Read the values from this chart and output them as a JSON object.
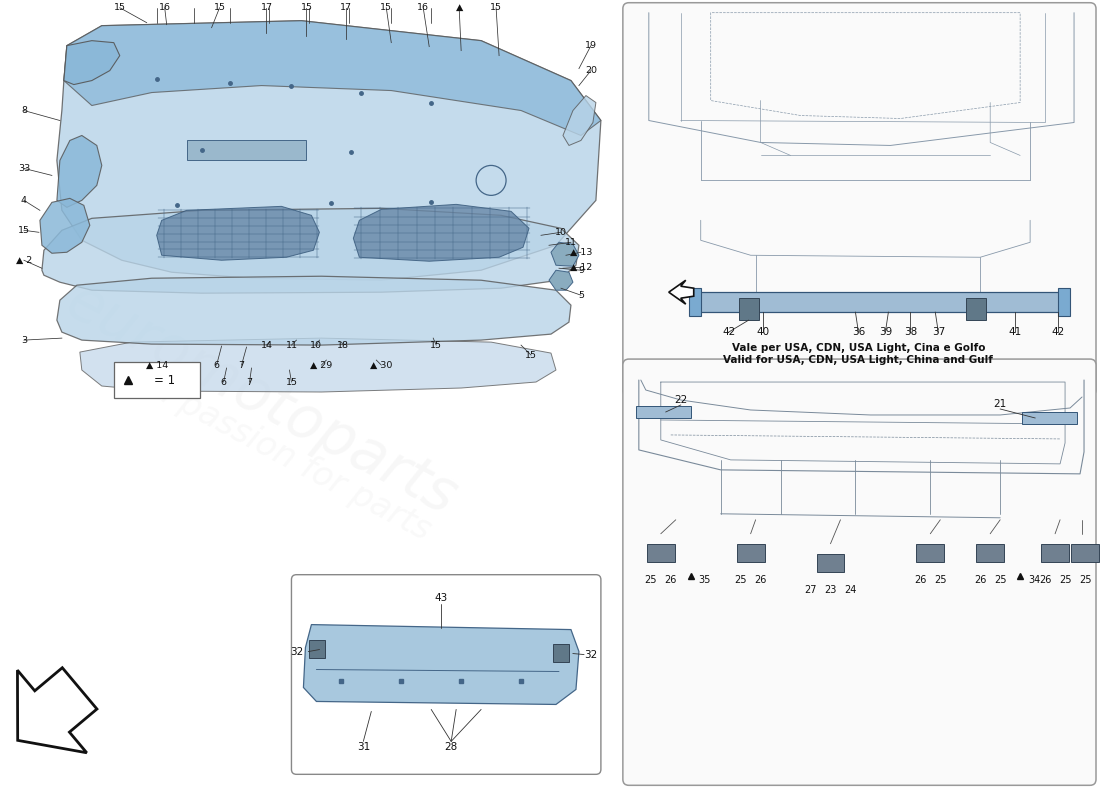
{
  "bg_color": "#ffffff",
  "light_blue": "#b8d4e8",
  "medium_blue": "#8ab8d8",
  "dark_blue": "#6898b8",
  "mesh_blue": "#7898b0",
  "outline_color": "#555555",
  "line_color": "#333333",
  "frame_color": "#8899aa",
  "text_color": "#000000",
  "usa_note_line1": "Vale per USA, CDN, USA Light, Cina e Golfo",
  "usa_note_line2": "Valid for USA, CDN, USA Light, China and Gulf",
  "triangle_note": "▲ = 1"
}
